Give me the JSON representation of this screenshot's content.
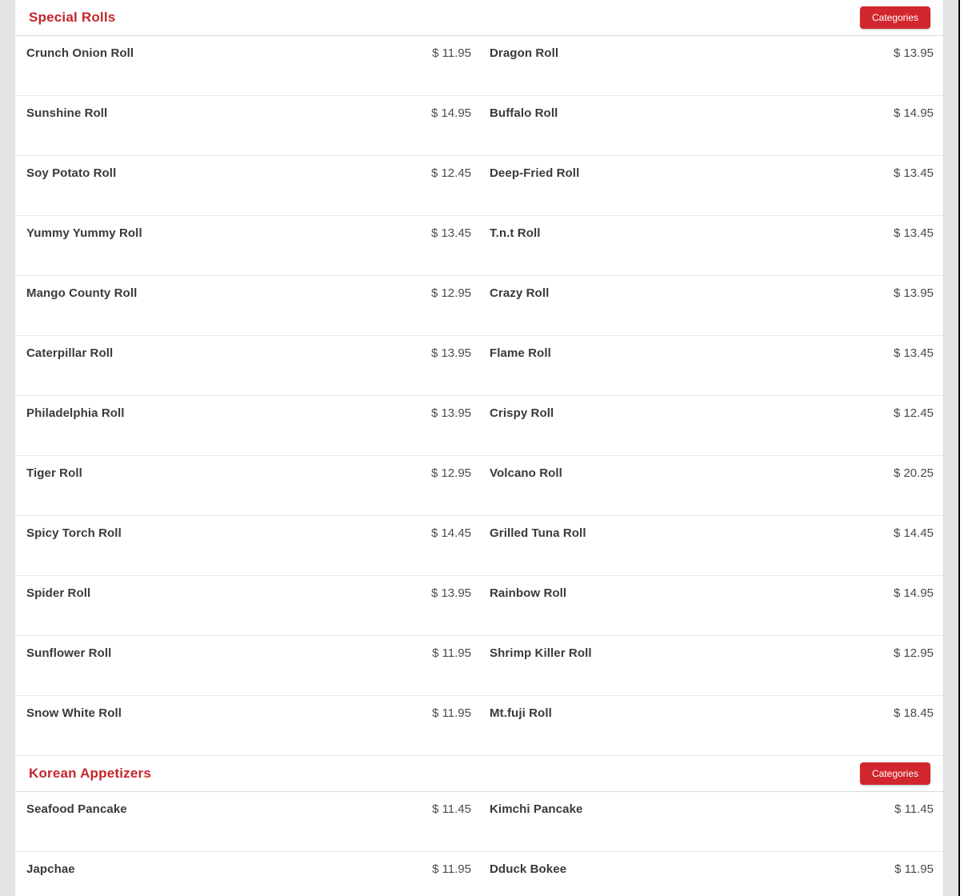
{
  "colors": {
    "accent_red": "#c5262c",
    "button_red": "#d2262e",
    "item_text": "#3a3a3a",
    "price_text": "#4a4a4a",
    "separator": "#e8e8e8",
    "page_gutter": "#e3e3e3"
  },
  "sections": [
    {
      "title": "Special Rolls",
      "button_label": "Categories",
      "rows": [
        {
          "left": {
            "name": "Crunch Onion Roll",
            "price": "$ 11.95"
          },
          "right": {
            "name": "Dragon Roll",
            "price": "$ 13.95"
          }
        },
        {
          "left": {
            "name": "Sunshine Roll",
            "price": "$ 14.95"
          },
          "right": {
            "name": "Buffalo Roll",
            "price": "$ 14.95"
          }
        },
        {
          "left": {
            "name": "Soy Potato Roll",
            "price": "$ 12.45"
          },
          "right": {
            "name": "Deep-Fried Roll",
            "price": "$ 13.45"
          }
        },
        {
          "left": {
            "name": "Yummy Yummy Roll",
            "price": "$ 13.45"
          },
          "right": {
            "name": "T.n.t Roll",
            "price": "$ 13.45"
          }
        },
        {
          "left": {
            "name": "Mango County Roll",
            "price": "$ 12.95"
          },
          "right": {
            "name": "Crazy Roll",
            "price": "$ 13.95"
          }
        },
        {
          "left": {
            "name": "Caterpillar Roll",
            "price": "$ 13.95"
          },
          "right": {
            "name": "Flame Roll",
            "price": "$ 13.45"
          }
        },
        {
          "left": {
            "name": "Philadelphia Roll",
            "price": "$ 13.95"
          },
          "right": {
            "name": "Crispy Roll",
            "price": "$ 12.45"
          }
        },
        {
          "left": {
            "name": "Tiger Roll",
            "price": "$ 12.95"
          },
          "right": {
            "name": "Volcano Roll",
            "price": "$ 20.25"
          }
        },
        {
          "left": {
            "name": "Spicy Torch Roll",
            "price": "$ 14.45"
          },
          "right": {
            "name": "Grilled Tuna Roll",
            "price": "$ 14.45"
          }
        },
        {
          "left": {
            "name": "Spider Roll",
            "price": "$ 13.95"
          },
          "right": {
            "name": "Rainbow Roll",
            "price": "$ 14.95"
          }
        },
        {
          "left": {
            "name": "Sunflower Roll",
            "price": "$ 11.95"
          },
          "right": {
            "name": "Shrimp Killer Roll",
            "price": "$ 12.95"
          }
        },
        {
          "left": {
            "name": "Snow White Roll",
            "price": "$ 11.95"
          },
          "right": {
            "name": "Mt.fuji Roll",
            "price": "$ 18.45"
          }
        }
      ]
    },
    {
      "title": "Korean Appetizers",
      "button_label": "Categories",
      "rows": [
        {
          "left": {
            "name": "Seafood Pancake",
            "price": "$ 11.45"
          },
          "right": {
            "name": "Kimchi Pancake",
            "price": "$ 11.45"
          }
        },
        {
          "left": {
            "name": "Japchae",
            "price": "$ 11.95"
          },
          "right": {
            "name": "Dduck Bokee",
            "price": "$ 11.95"
          }
        }
      ]
    }
  ]
}
